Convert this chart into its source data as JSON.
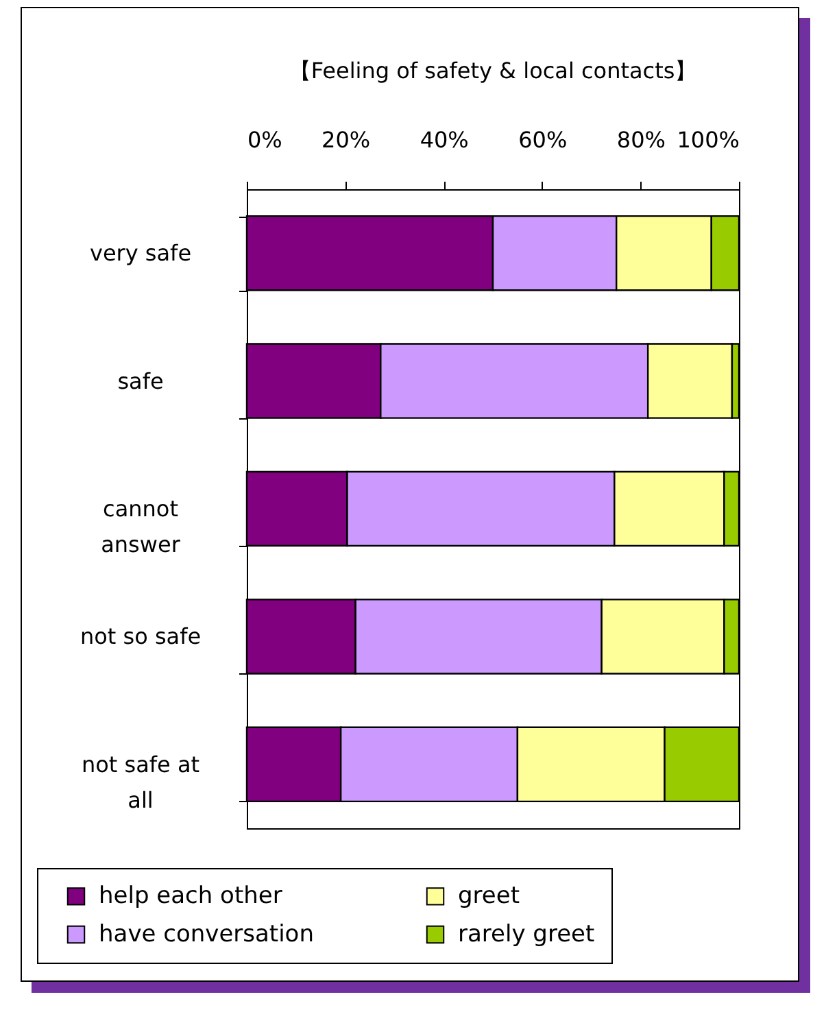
{
  "chart_data": {
    "type": "bar",
    "title": "【Feeling of safety & local contacts】",
    "orientation": "horizontal",
    "stacked": true,
    "categories": [
      "very safe",
      "safe",
      "cannot answer",
      "not so safe",
      "not safe at all"
    ],
    "series": [
      {
        "name": "help each other",
        "color": "#800080",
        "values": [
          50,
          27.2,
          20.4,
          22.1,
          19.1
        ]
      },
      {
        "name": "have conversation",
        "color": "#cc99ff",
        "values": [
          25.1,
          54.3,
          54.3,
          50,
          35.9
        ]
      },
      {
        "name": "greet",
        "color": "#ffff99",
        "values": [
          19.3,
          17.1,
          22.3,
          24.9,
          29.9
        ]
      },
      {
        "name": "rarely greet",
        "color": "#99cc00",
        "values": [
          5.6,
          1.4,
          3,
          3,
          15.1
        ]
      }
    ],
    "xlim": [
      0,
      100
    ],
    "xticks": [
      {
        "value": 0,
        "label": "0%"
      },
      {
        "value": 20,
        "label": "20%"
      },
      {
        "value": 40,
        "label": "40%"
      },
      {
        "value": 60,
        "label": "60%"
      },
      {
        "value": 80,
        "label": "80%"
      },
      {
        "value": 100,
        "label": "100%"
      }
    ],
    "legend": "bottom",
    "grid": false
  }
}
